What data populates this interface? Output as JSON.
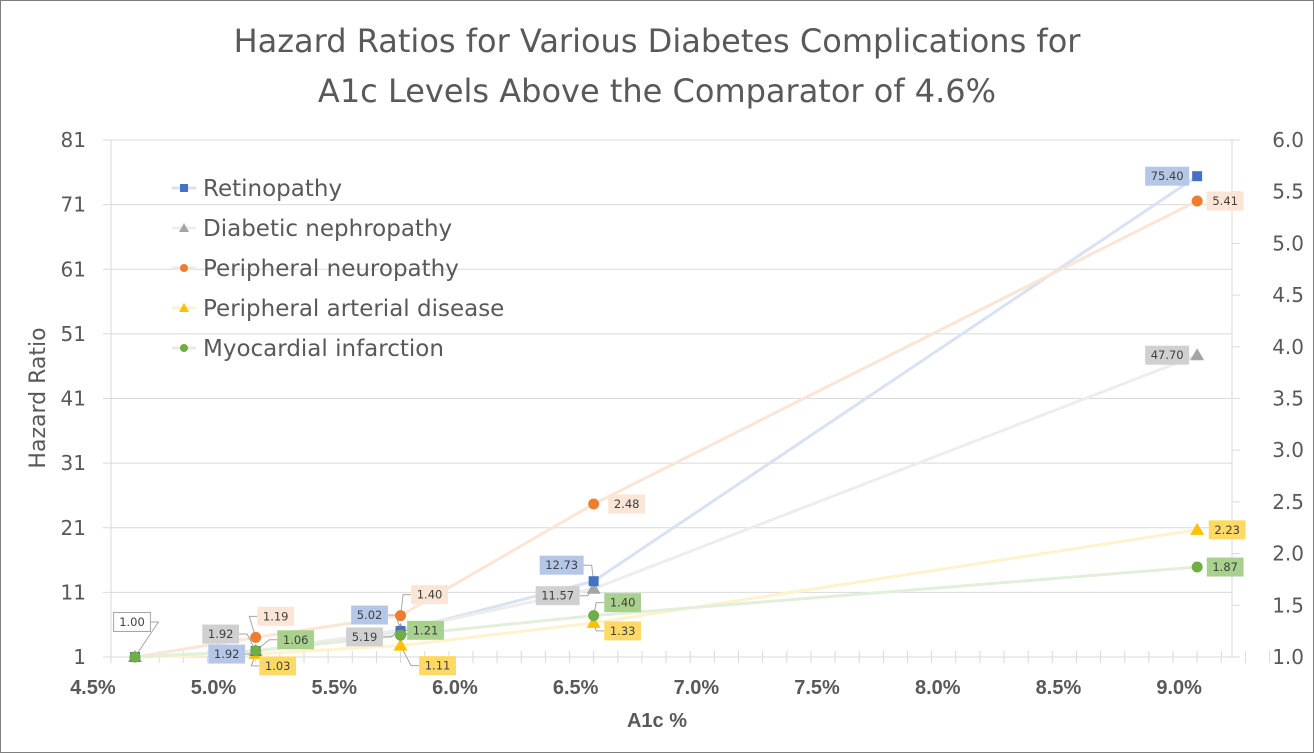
{
  "chart_data": {
    "type": "line",
    "title_lines": [
      "Hazard Ratios for Various Diabetes Complications for",
      "A1c Levels Above the Comparator of 4.6%"
    ],
    "xlabel": "A1c %",
    "ylabel": "Hazard Ratio",
    "y2label": "",
    "x": [
      4.6,
      5.1,
      5.7,
      6.5,
      9.0
    ],
    "xlim": [
      4.5,
      9.3
    ],
    "xticks": [
      "4.5%",
      "5.0%",
      "5.5%",
      "6.0%",
      "6.5%",
      "7.0%",
      "7.5%",
      "8.0%",
      "8.5%",
      "9.0%"
    ],
    "xtick_values": [
      4.5,
      5.0,
      5.5,
      6.0,
      6.5,
      7.0,
      7.5,
      8.0,
      8.5,
      9.0
    ],
    "ylim": [
      1,
      81
    ],
    "yticks": [
      "1",
      "11",
      "21",
      "31",
      "41",
      "51",
      "61",
      "71",
      "81"
    ],
    "ytick_values": [
      1,
      11,
      21,
      31,
      41,
      51,
      61,
      71,
      81
    ],
    "y2lim": [
      1.0,
      6.0
    ],
    "y2ticks": [
      "1.0",
      "1.5",
      "2.0",
      "2.5",
      "3.0",
      "3.5",
      "4.0",
      "4.5",
      "5.0",
      "5.5",
      "6.0"
    ],
    "y2tick_values": [
      1.0,
      1.5,
      2.0,
      2.5,
      3.0,
      3.5,
      4.0,
      4.5,
      5.0,
      5.5,
      6.0
    ],
    "grid": true,
    "legend_position": "top-left (inside plot)",
    "series": [
      {
        "name": "Retinopathy",
        "axis": "left",
        "marker": "square",
        "color": "#4472c4",
        "line_color": "#d9e2f3",
        "label_bg": "#b4c7e7",
        "values": [
          1.0,
          1.92,
          5.02,
          12.73,
          75.4
        ],
        "labels": [
          "1.00",
          "1.92",
          "5.02",
          "12.73",
          "75.40"
        ]
      },
      {
        "name": "Diabetic nephropathy",
        "axis": "left",
        "marker": "triangle",
        "color": "#a5a5a5",
        "line_color": "#ededed",
        "label_bg": "#d0d0d0",
        "values": [
          1.0,
          1.92,
          5.19,
          11.57,
          47.7
        ],
        "labels": [
          "",
          "1.92",
          "5.19",
          "11.57",
          "47.70"
        ]
      },
      {
        "name": "Peripheral neuropathy",
        "axis": "right",
        "marker": "circle",
        "color": "#ed7d31",
        "line_color": "#fbe5d6",
        "label_bg": "#fbe5d6",
        "values": [
          1.0,
          1.19,
          1.4,
          2.48,
          5.41
        ],
        "labels": [
          "",
          "1.19",
          "1.40",
          "2.48",
          "5.41"
        ]
      },
      {
        "name": "Peripheral arterial disease",
        "axis": "right",
        "marker": "triangle",
        "color": "#ffc000",
        "line_color": "#fff2cc",
        "label_bg": "#ffd966",
        "values": [
          1.0,
          1.03,
          1.11,
          1.33,
          2.23
        ],
        "labels": [
          "",
          "1.03",
          "1.11",
          "1.33",
          "2.23"
        ]
      },
      {
        "name": "Myocardial infarction",
        "axis": "right",
        "marker": "circle",
        "color": "#70ad47",
        "line_color": "#e2efda",
        "label_bg": "#a9d18e",
        "values": [
          1.0,
          1.06,
          1.21,
          1.4,
          1.87
        ],
        "labels": [
          "",
          "1.06",
          "1.21",
          "1.40",
          "1.87"
        ]
      }
    ]
  }
}
